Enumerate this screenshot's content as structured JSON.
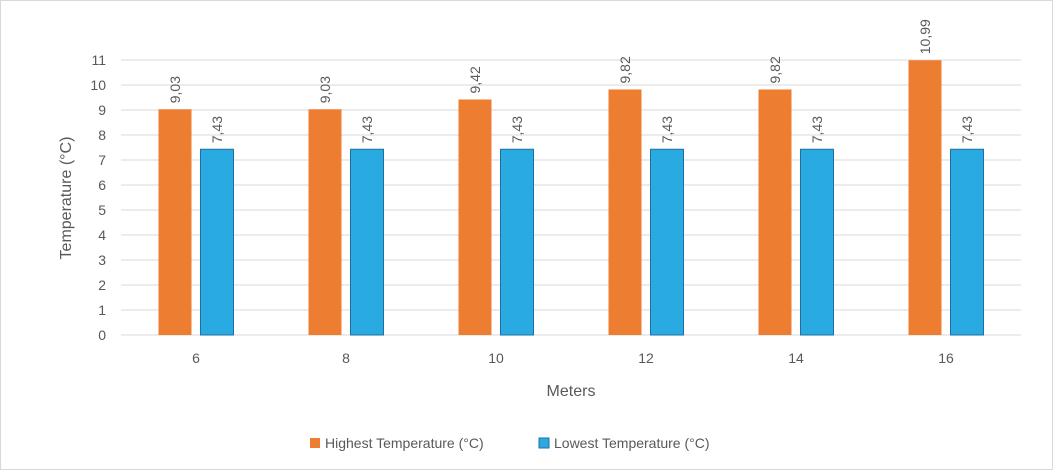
{
  "chart_data": {
    "type": "bar",
    "title": "",
    "xlabel": "Meters",
    "ylabel": "Temperature (°C)",
    "categories": [
      "6",
      "8",
      "10",
      "12",
      "14",
      "16"
    ],
    "series": [
      {
        "name": "Highest Temperature (°C)",
        "values": [
          9.03,
          9.03,
          9.42,
          9.82,
          9.82,
          10.99
        ],
        "labels": [
          "9,03",
          "9,03",
          "9,42",
          "9,82",
          "9,82",
          "10,99"
        ],
        "color": "#ED7D31"
      },
      {
        "name": "Lowest Temperature (°C)",
        "values": [
          7.43,
          7.43,
          7.43,
          7.43,
          7.43,
          7.43
        ],
        "labels": [
          "7,43",
          "7,43",
          "7,43",
          "7,43",
          "7,43",
          "7,43"
        ],
        "color": "#29ABE2"
      }
    ],
    "ylim": [
      0,
      11
    ],
    "yticks": [
      "0",
      "1",
      "2",
      "3",
      "4",
      "5",
      "6",
      "7",
      "8",
      "9",
      "10",
      "11"
    ],
    "grid": true,
    "legend_position": "bottom"
  }
}
